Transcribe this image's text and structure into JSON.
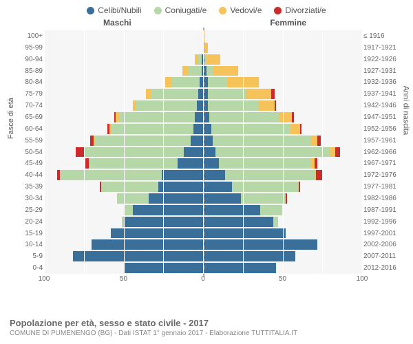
{
  "legend": [
    {
      "label": "Celibi/Nubili",
      "color": "#3a6f9a"
    },
    {
      "label": "Coniugati/e",
      "color": "#b6d7a8"
    },
    {
      "label": "Vedovi/e",
      "color": "#f6c35a"
    },
    {
      "label": "Divorziati/e",
      "color": "#cc2b2b"
    }
  ],
  "headers": {
    "male": "Maschi",
    "female": "Femmine"
  },
  "axis": {
    "left_title": "Fasce di età",
    "right_title": "Anni di nascita",
    "x_max": 100,
    "x_ticks": [
      100,
      50,
      0,
      50,
      100
    ]
  },
  "background_color": "#f6f6f6",
  "grid_color": "#ffffff",
  "center_line_color": "#aaaaaa",
  "footer": {
    "title": "Popolazione per età, sesso e stato civile - 2017",
    "subtitle": "COMUNE DI PUMENENGO (BG) - Dati ISTAT 1° gennaio 2017 - Elaborazione TUTTITALIA.IT"
  },
  "series_keys": [
    "celibi",
    "coniugati",
    "vedovi",
    "divorziati"
  ],
  "series_colors": {
    "celibi": "#3a6f9a",
    "coniugati": "#b6d7a8",
    "vedovi": "#f6c35a",
    "divorziati": "#cc2b2b"
  },
  "rows": [
    {
      "age": "100+",
      "birth": "≤ 1916",
      "m": {
        "celibi": 0,
        "coniugati": 0,
        "vedovi": 0,
        "divorziati": 0
      },
      "f": {
        "celibi": 0,
        "coniugati": 0,
        "vedovi": 1,
        "divorziati": 0
      }
    },
    {
      "age": "95-99",
      "birth": "1917-1921",
      "m": {
        "celibi": 0,
        "coniugati": 0,
        "vedovi": 0,
        "divorziati": 0
      },
      "f": {
        "celibi": 0,
        "coniugati": 0,
        "vedovi": 3,
        "divorziati": 0
      }
    },
    {
      "age": "90-94",
      "birth": "1922-1926",
      "m": {
        "celibi": 1,
        "coniugati": 2,
        "vedovi": 2,
        "divorziati": 0
      },
      "f": {
        "celibi": 1,
        "coniugati": 1,
        "vedovi": 9,
        "divorziati": 0
      }
    },
    {
      "age": "85-89",
      "birth": "1927-1931",
      "m": {
        "celibi": 1,
        "coniugati": 8,
        "vedovi": 4,
        "divorziati": 0
      },
      "f": {
        "celibi": 2,
        "coniugati": 4,
        "vedovi": 16,
        "divorziati": 0
      }
    },
    {
      "age": "80-84",
      "birth": "1932-1936",
      "m": {
        "celibi": 2,
        "coniugati": 18,
        "vedovi": 4,
        "divorziati": 0
      },
      "f": {
        "celibi": 3,
        "coniugati": 12,
        "vedovi": 20,
        "divorziati": 0
      }
    },
    {
      "age": "75-79",
      "birth": "1937-1941",
      "m": {
        "celibi": 3,
        "coniugati": 30,
        "vedovi": 3,
        "divorziati": 0
      },
      "f": {
        "celibi": 3,
        "coniugati": 24,
        "vedovi": 16,
        "divorziati": 2
      }
    },
    {
      "age": "70-74",
      "birth": "1942-1946",
      "m": {
        "celibi": 4,
        "coniugati": 38,
        "vedovi": 2,
        "divorziati": 0
      },
      "f": {
        "celibi": 3,
        "coniugati": 32,
        "vedovi": 10,
        "divorziati": 1
      }
    },
    {
      "age": "65-69",
      "birth": "1947-1951",
      "m": {
        "celibi": 5,
        "coniugati": 48,
        "vedovi": 2,
        "divorziati": 1
      },
      "f": {
        "celibi": 4,
        "coniugati": 44,
        "vedovi": 8,
        "divorziati": 1
      }
    },
    {
      "age": "60-64",
      "birth": "1952-1956",
      "m": {
        "celibi": 6,
        "coniugati": 52,
        "vedovi": 1,
        "divorziati": 1
      },
      "f": {
        "celibi": 5,
        "coniugati": 50,
        "vedovi": 6,
        "divorziati": 1
      }
    },
    {
      "age": "55-59",
      "birth": "1957-1961",
      "m": {
        "celibi": 8,
        "coniugati": 60,
        "vedovi": 1,
        "divorziati": 2
      },
      "f": {
        "celibi": 6,
        "coniugati": 62,
        "vedovi": 4,
        "divorziati": 2
      }
    },
    {
      "age": "50-54",
      "birth": "1962-1966",
      "m": {
        "celibi": 12,
        "coniugati": 62,
        "vedovi": 1,
        "divorziati": 5
      },
      "f": {
        "celibi": 8,
        "coniugati": 72,
        "vedovi": 3,
        "divorziati": 3
      }
    },
    {
      "age": "45-49",
      "birth": "1967-1971",
      "m": {
        "celibi": 16,
        "coniugati": 56,
        "vedovi": 0,
        "divorziati": 2
      },
      "f": {
        "celibi": 10,
        "coniugati": 58,
        "vedovi": 2,
        "divorziati": 2
      }
    },
    {
      "age": "40-44",
      "birth": "1972-1976",
      "m": {
        "celibi": 26,
        "coniugati": 64,
        "vedovi": 0,
        "divorziati": 2
      },
      "f": {
        "celibi": 14,
        "coniugati": 56,
        "vedovi": 1,
        "divorziati": 4
      }
    },
    {
      "age": "35-39",
      "birth": "1977-1981",
      "m": {
        "celibi": 28,
        "coniugati": 36,
        "vedovi": 0,
        "divorziati": 1
      },
      "f": {
        "celibi": 18,
        "coniugati": 42,
        "vedovi": 0,
        "divorziati": 1
      }
    },
    {
      "age": "30-34",
      "birth": "1982-1986",
      "m": {
        "celibi": 34,
        "coniugati": 20,
        "vedovi": 0,
        "divorziati": 0
      },
      "f": {
        "celibi": 24,
        "coniugati": 28,
        "vedovi": 0,
        "divorziati": 1
      }
    },
    {
      "age": "25-29",
      "birth": "1987-1991",
      "m": {
        "celibi": 44,
        "coniugati": 6,
        "vedovi": 0,
        "divorziati": 0
      },
      "f": {
        "celibi": 36,
        "coniugati": 14,
        "vedovi": 0,
        "divorziati": 0
      }
    },
    {
      "age": "20-24",
      "birth": "1992-1996",
      "m": {
        "celibi": 50,
        "coniugati": 1,
        "vedovi": 0,
        "divorziati": 0
      },
      "f": {
        "celibi": 44,
        "coniugati": 3,
        "vedovi": 0,
        "divorziati": 0
      }
    },
    {
      "age": "15-19",
      "birth": "1997-2001",
      "m": {
        "celibi": 58,
        "coniugati": 0,
        "vedovi": 0,
        "divorziati": 0
      },
      "f": {
        "celibi": 52,
        "coniugati": 0,
        "vedovi": 0,
        "divorziati": 0
      }
    },
    {
      "age": "10-14",
      "birth": "2002-2006",
      "m": {
        "celibi": 70,
        "coniugati": 0,
        "vedovi": 0,
        "divorziati": 0
      },
      "f": {
        "celibi": 72,
        "coniugati": 0,
        "vedovi": 0,
        "divorziati": 0
      }
    },
    {
      "age": "5-9",
      "birth": "2007-2011",
      "m": {
        "celibi": 82,
        "coniugati": 0,
        "vedovi": 0,
        "divorziati": 0
      },
      "f": {
        "celibi": 58,
        "coniugati": 0,
        "vedovi": 0,
        "divorziati": 0
      }
    },
    {
      "age": "0-4",
      "birth": "2012-2016",
      "m": {
        "celibi": 50,
        "coniugati": 0,
        "vedovi": 0,
        "divorziati": 0
      },
      "f": {
        "celibi": 46,
        "coniugati": 0,
        "vedovi": 0,
        "divorziati": 0
      }
    }
  ]
}
